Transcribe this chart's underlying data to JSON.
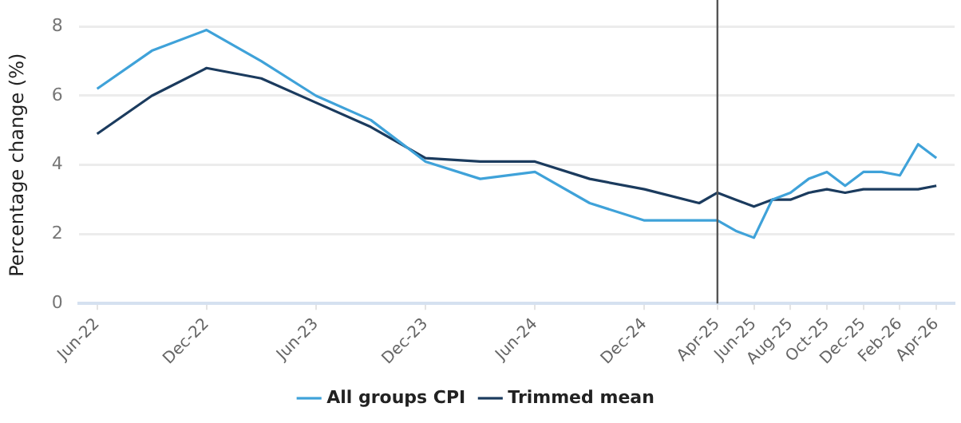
{
  "chart_data": {
    "type": "line",
    "ylabel": "Percentage change (%)",
    "x": [
      "2022-06",
      "2022-09",
      "2022-12",
      "2023-03",
      "2023-06",
      "2023-09",
      "2023-12",
      "2024-03",
      "2024-06",
      "2024-09",
      "2024-12",
      "2025-03",
      "2025-04",
      "2025-05",
      "2025-06",
      "2025-07",
      "2025-08",
      "2025-09",
      "2025-10",
      "2025-11",
      "2025-12",
      "2026-01",
      "2026-02",
      "2026-03",
      "2026-04"
    ],
    "series": [
      {
        "name": "All groups CPI",
        "color": "#3fa2d9",
        "values": [
          6.2,
          7.3,
          7.9,
          7.0,
          6.0,
          5.3,
          4.1,
          3.6,
          3.8,
          2.9,
          2.4,
          2.4,
          2.4,
          2.1,
          1.9,
          3.0,
          3.2,
          3.6,
          3.8,
          3.4,
          3.8,
          3.8,
          3.7,
          4.6,
          4.2
        ]
      },
      {
        "name": "Trimmed mean",
        "color": "#1b3b5e",
        "values": [
          4.9,
          6.0,
          6.8,
          6.5,
          5.8,
          5.1,
          4.2,
          4.1,
          4.1,
          3.6,
          3.3,
          2.9,
          3.2,
          3.0,
          2.8,
          3.0,
          3.0,
          3.2,
          3.3,
          3.2,
          3.3,
          3.3,
          3.3,
          3.3,
          3.4
        ]
      }
    ],
    "xlim": [
      "2022-05",
      "2026-05"
    ],
    "xticks": [
      {
        "value": "2022-06",
        "label": "Jun-22"
      },
      {
        "value": "2022-12",
        "label": "Dec-22"
      },
      {
        "value": "2023-06",
        "label": "Jun-23"
      },
      {
        "value": "2023-12",
        "label": "Dec-23"
      },
      {
        "value": "2024-06",
        "label": "Jun-24"
      },
      {
        "value": "2024-12",
        "label": "Dec-24"
      },
      {
        "value": "2025-04",
        "label": "Apr-25"
      },
      {
        "value": "2025-06",
        "label": "Jun-25"
      },
      {
        "value": "2025-08",
        "label": "Aug-25"
      },
      {
        "value": "2025-10",
        "label": "Oct-25"
      },
      {
        "value": "2025-12",
        "label": "Dec-25"
      },
      {
        "value": "2026-02",
        "label": "Feb-26"
      },
      {
        "value": "2026-04",
        "label": "Apr-26"
      }
    ],
    "ylim": [
      0,
      8
    ],
    "yticks": [
      0,
      2,
      4,
      6,
      8
    ],
    "ref_lines": [
      {
        "axis": "x",
        "value": "2025-04",
        "color": "#555555"
      }
    ],
    "grid": "y",
    "legend": "bottom",
    "marker": "none",
    "line_style": "solid"
  }
}
